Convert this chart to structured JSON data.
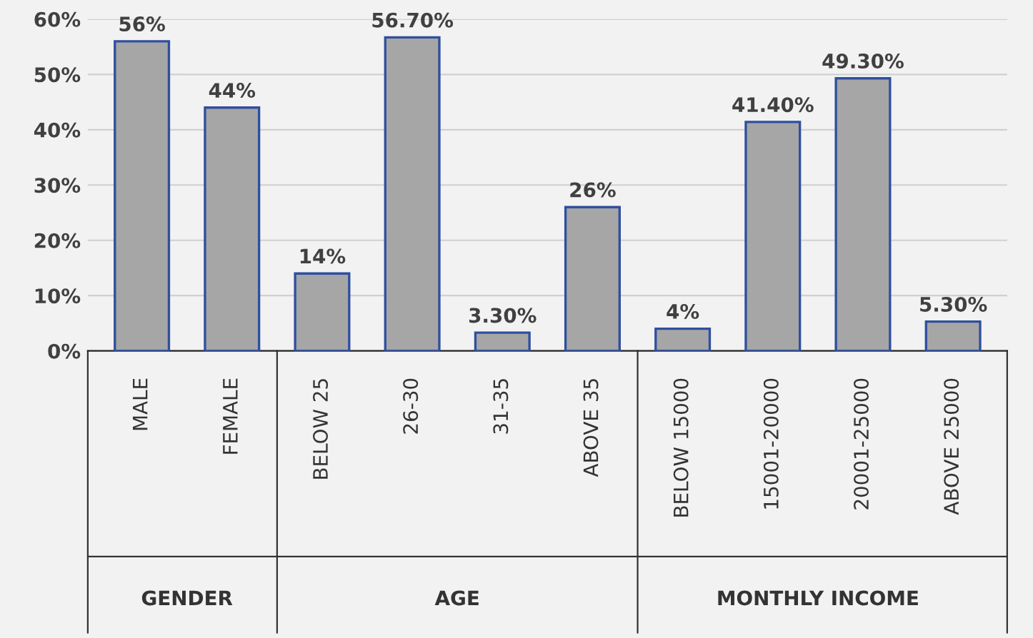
{
  "chart_data": {
    "type": "bar",
    "categories": [
      "MALE",
      "FEMALE",
      "BELOW 25",
      "26-30",
      "31-35",
      "ABOVE 35",
      "BELOW 15000",
      "15001-20000",
      "20001-25000",
      "ABOVE 25000"
    ],
    "values": [
      56,
      44,
      14,
      56.7,
      3.3,
      26,
      4,
      41.4,
      49.3,
      5.3
    ],
    "value_labels": [
      "56%",
      "44%",
      "14%",
      "56.70%",
      "3.30%",
      "26%",
      "4%",
      "41.40%",
      "49.30%",
      "5.30%"
    ],
    "color": "#a6a6a6",
    "ylim": [
      0,
      60
    ],
    "yticks": [
      {
        "value": 0,
        "label": "0%"
      },
      {
        "value": 10,
        "label": "10%"
      },
      {
        "value": 20,
        "label": "20%"
      },
      {
        "value": 30,
        "label": "30%"
      },
      {
        "value": 40,
        "label": "40%"
      },
      {
        "value": 50,
        "label": "50%"
      },
      {
        "value": 60,
        "label": "60%"
      }
    ],
    "grid": "y",
    "annotations": [
      "GENDER",
      "AGE",
      "MONTHLY INCOME"
    ]
  }
}
